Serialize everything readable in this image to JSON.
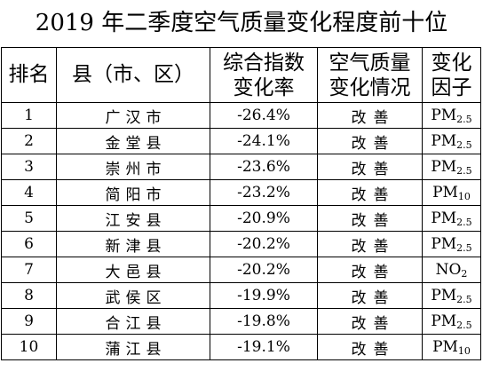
{
  "title": "2019 年二季度空气质量变化程度前十位",
  "headers": {
    "rank": "排名",
    "county": "县（市、区）",
    "index_change": [
      "综合指数",
      "变化率"
    ],
    "quality_change": [
      "空气质量",
      "变化情况"
    ],
    "factor": [
      "变化",
      "因子"
    ]
  },
  "rows": [
    {
      "rank": "1",
      "county": "广汉市",
      "rate": "-26.4%",
      "trend": "改善",
      "factor_base": "PM",
      "factor_sub": "2.5"
    },
    {
      "rank": "2",
      "county": "金堂县",
      "rate": "-24.1%",
      "trend": "改善",
      "factor_base": "PM",
      "factor_sub": "2.5"
    },
    {
      "rank": "3",
      "county": "崇州市",
      "rate": "-23.6%",
      "trend": "改善",
      "factor_base": "PM",
      "factor_sub": "2.5"
    },
    {
      "rank": "4",
      "county": "简阳市",
      "rate": "-23.2%",
      "trend": "改善",
      "factor_base": "PM",
      "factor_sub": "10"
    },
    {
      "rank": "5",
      "county": "江安县",
      "rate": "-20.9%",
      "trend": "改善",
      "factor_base": "PM",
      "factor_sub": "2.5"
    },
    {
      "rank": "6",
      "county": "新津县",
      "rate": "-20.2%",
      "trend": "改善",
      "factor_base": "PM",
      "factor_sub": "2.5"
    },
    {
      "rank": "7",
      "county": "大邑县",
      "rate": "-20.2%",
      "trend": "改善",
      "factor_base": "NO",
      "factor_sub": "2"
    },
    {
      "rank": "8",
      "county": "武侯区",
      "rate": "-19.9%",
      "trend": "改善",
      "factor_base": "PM",
      "factor_sub": "2.5"
    },
    {
      "rank": "9",
      "county": "合江县",
      "rate": "-19.8%",
      "trend": "改善",
      "factor_base": "PM",
      "factor_sub": "2.5"
    },
    {
      "rank": "10",
      "county": "蒲江县",
      "rate": "-19.1%",
      "trend": "改善",
      "factor_base": "PM",
      "factor_sub": "10"
    }
  ]
}
